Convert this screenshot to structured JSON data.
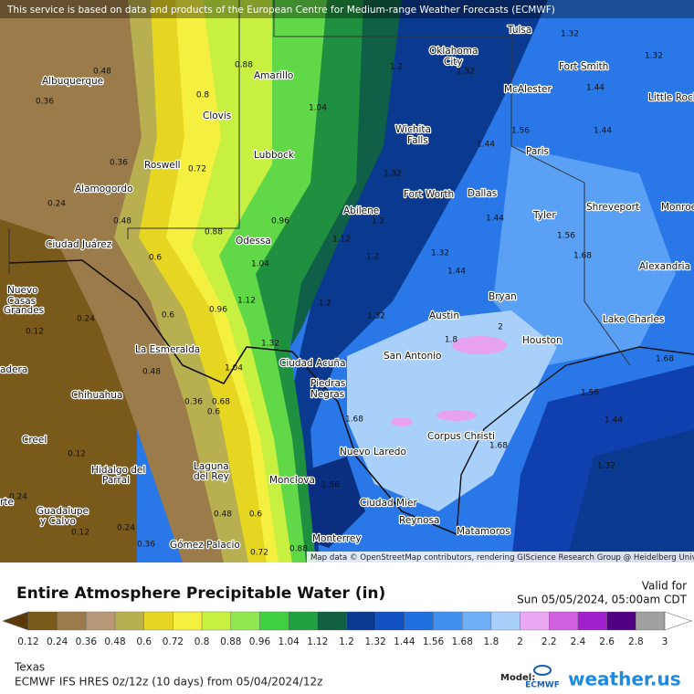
{
  "header": {
    "notice": "This service is based on data and products of the European Centre for Medium-range Weather Forecasts (ECMWF)",
    "attribution": "Map data © OpenStreetMap contributors, rendering GIScience Research Group @ Heidelberg University"
  },
  "map": {
    "place_labels": [
      "Tulsa",
      "Oklahoma",
      "City",
      "Fort Smith",
      "McAlester",
      "Little Rock",
      "Albuquerque",
      "Amarillo",
      "Clovis",
      "Wichita",
      "Falls",
      "Paris",
      "Lubbock",
      "Roswell",
      "Alamogordo",
      "Fort Worth",
      "Dallas",
      "Abilene",
      "Shreveport",
      "Monroe",
      "Tyler",
      "Odessa",
      "Ciudad Juárez",
      "Alexandria",
      "Nuevo",
      "Casas",
      "Grandes",
      "Bryan",
      "Austin",
      "Lake Charles",
      "Houston",
      "La Esmeralda",
      "San Antonio",
      "Ciudad Acuña",
      "Piedras",
      "Negras",
      "Chihuahua",
      "adera",
      "Creel",
      "Corpus Christi",
      "Nuevo Laredo",
      "Hidalgo del",
      "Parral",
      "Laguna",
      "del Rey",
      "Monclova",
      "rte",
      "Guadalupe",
      "y Calvo",
      "Ciudad Mier",
      "Reynosa",
      "Matamoros",
      "Monterrey",
      "Gómez Palacio"
    ],
    "contour_labels": [
      1.32,
      1.32,
      1.32,
      0.48,
      0.88,
      1.2,
      1.44,
      0.36,
      0.8,
      1.04,
      1.56,
      1.44,
      1.44,
      0.36,
      0.72,
      1.32,
      0.24,
      0.48,
      0.88,
      0.96,
      1.12,
      1.2,
      1.44,
      1.56,
      1.68,
      1.2,
      1.32,
      0.6,
      1.04,
      1.44,
      0.24,
      0.12,
      0.6,
      0.96,
      1.12,
      1.2,
      1.32,
      2,
      1.68,
      0.48,
      1.04,
      1.32,
      0.36,
      0.68,
      0.6,
      1.56,
      1.68,
      1.44,
      1.68,
      0.12,
      1.32,
      1.56,
      0.24,
      0.36,
      0.48,
      0.6,
      0.72,
      0.88,
      0.12,
      0.24,
      1.8
    ]
  },
  "legend": {
    "title": "Entire Atmosphere Precipitable Water (in)",
    "valid_label": "Valid for",
    "valid_time": "Sun 05/05/2024, 05:00am CDT",
    "ticks": [
      0.12,
      0.24,
      0.36,
      0.48,
      0.6,
      0.72,
      0.8,
      0.88,
      0.96,
      1.04,
      1.12,
      1.2,
      1.32,
      1.44,
      1.56,
      1.68,
      1.8,
      2,
      2.2,
      2.4,
      2.6,
      2.8,
      3
    ],
    "colors": [
      "#5a3a0a",
      "#7a5a1a",
      "#9b7b4a",
      "#b89878",
      "#b8b050",
      "#e6d622",
      "#f5f040",
      "#c8f040",
      "#90e850",
      "#40d040",
      "#20a040",
      "#106040",
      "#0a3a90",
      "#1050c0",
      "#2070e0",
      "#4090f0",
      "#70b0f8",
      "#a8d0fa",
      "#eaa8f2",
      "#d060e0",
      "#a020d0",
      "#500080",
      "#a0a0a0",
      "#ffffff"
    ]
  },
  "footer": {
    "region": "Texas",
    "run": "ECMWF IFS HRES 0z/12z (10 days)  from  05/04/2024/12z",
    "model_label": "Model:",
    "model_logo": "ECMWF",
    "brand": "weather.us"
  }
}
